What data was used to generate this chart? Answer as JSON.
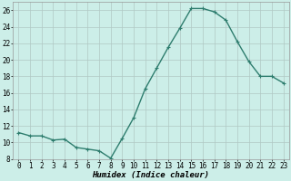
{
  "x": [
    0,
    1,
    2,
    3,
    4,
    5,
    6,
    7,
    8,
    9,
    10,
    11,
    12,
    13,
    14,
    15,
    16,
    17,
    18,
    19,
    20,
    21,
    22,
    23
  ],
  "y": [
    11.2,
    10.8,
    10.8,
    10.3,
    10.4,
    9.4,
    9.2,
    9.0,
    8.1,
    10.5,
    13.0,
    16.5,
    19.0,
    21.5,
    23.8,
    26.2,
    26.2,
    25.8,
    24.8,
    22.2,
    19.8,
    18.0,
    18.0,
    17.2
  ],
  "line_color": "#2e7d6e",
  "marker": "+",
  "markersize": 3,
  "linewidth": 1.0,
  "bg_color": "#cceee8",
  "grid_color": "#b0c8c4",
  "xlabel": "Humidex (Indice chaleur)",
  "xlim": [
    -0.5,
    23.5
  ],
  "ylim": [
    8,
    27
  ],
  "yticks": [
    8,
    10,
    12,
    14,
    16,
    18,
    20,
    22,
    24,
    26
  ],
  "xticks": [
    0,
    1,
    2,
    3,
    4,
    5,
    6,
    7,
    8,
    9,
    10,
    11,
    12,
    13,
    14,
    15,
    16,
    17,
    18,
    19,
    20,
    21,
    22,
    23
  ],
  "xlabel_fontsize": 6.5,
  "tick_fontsize": 5.5
}
